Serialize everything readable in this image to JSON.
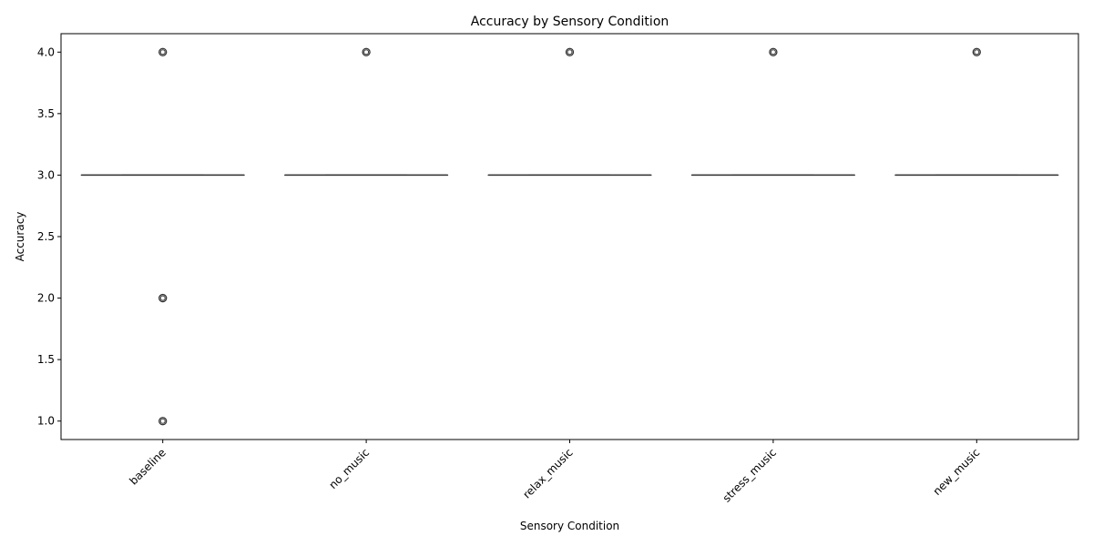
{
  "chart_data": {
    "type": "box",
    "title": "Accuracy by Sensory Condition",
    "xlabel": "Sensory Condition",
    "ylabel": "Accuracy",
    "categories": [
      "baseline",
      "no_music",
      "relax_music",
      "stress_music",
      "new_music"
    ],
    "ylim": [
      0.85,
      4.15
    ],
    "yticks": [
      "1.0",
      "1.5",
      "2.0",
      "2.5",
      "3.0",
      "3.5",
      "4.0"
    ],
    "grid": false,
    "box_color": "#333333",
    "boxes": [
      {
        "category": "baseline",
        "q1": 3,
        "median": 3,
        "q3": 3,
        "whisker_low": 3,
        "whisker_high": 3,
        "outliers": [
          1,
          2,
          4
        ]
      },
      {
        "category": "no_music",
        "q1": 3,
        "median": 3,
        "q3": 3,
        "whisker_low": 3,
        "whisker_high": 3,
        "outliers": [
          4
        ]
      },
      {
        "category": "relax_music",
        "q1": 3,
        "median": 3,
        "q3": 3,
        "whisker_low": 3,
        "whisker_high": 3,
        "outliers": [
          4
        ]
      },
      {
        "category": "stress_music",
        "q1": 3,
        "median": 3,
        "q3": 3,
        "whisker_low": 3,
        "whisker_high": 3,
        "outliers": [
          4
        ]
      },
      {
        "category": "new_music",
        "q1": 3,
        "median": 3,
        "q3": 3,
        "whisker_low": 3,
        "whisker_high": 3,
        "outliers": [
          4
        ]
      }
    ]
  }
}
